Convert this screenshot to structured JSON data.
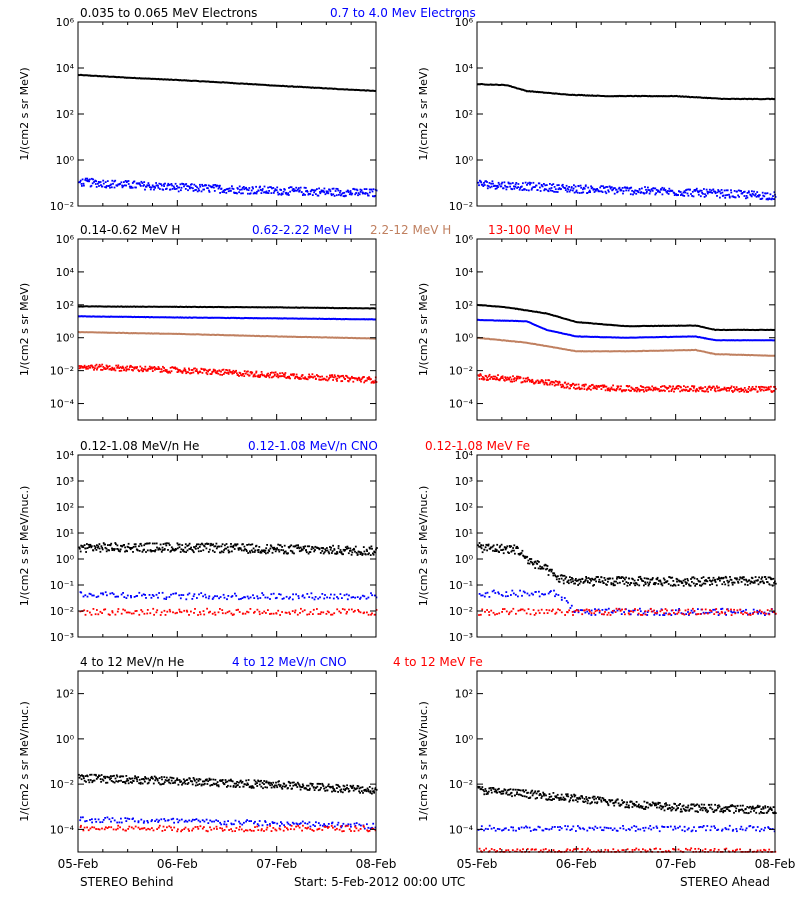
{
  "footer": {
    "left": "STEREO Behind",
    "center": "Start:  5-Feb-2012 00:00 UTC",
    "right": "STEREO Ahead"
  },
  "x_ticks": [
    "05-Feb",
    "06-Feb",
    "07-Feb",
    "08-Feb"
  ],
  "colors": {
    "black": "#000000",
    "blue": "#0000ff",
    "tan": "#c08060",
    "red": "#ff0000"
  },
  "chart_data": [
    {
      "type": "scatter",
      "panel": "row1-left",
      "ylabel": "1/(cm2 s sr MeV)",
      "ylim": [
        0.01,
        1000000
      ],
      "log_y": true,
      "yticks": [
        [
          0.01,
          "10⁻²"
        ],
        [
          1,
          "10⁰"
        ],
        [
          100,
          "10²"
        ],
        [
          10000,
          "10⁴"
        ],
        [
          1000000,
          "10⁶"
        ]
      ],
      "series": [
        {
          "name": "0.035 to 0.065 MeV Electrons",
          "color": "#000000",
          "style": "line",
          "x": [
            0,
            0.5,
            1,
            1.5,
            2,
            2.5,
            3
          ],
          "values": [
            5000,
            3800,
            3000,
            2300,
            1700,
            1300,
            1000
          ]
        },
        {
          "name": "0.7 to 4.0 Mev Electrons",
          "color": "#0000ff",
          "style": "noisy",
          "x": [
            0,
            1,
            2,
            3
          ],
          "values": [
            0.12,
            0.07,
            0.05,
            0.04
          ]
        }
      ]
    },
    {
      "type": "scatter",
      "panel": "row1-right",
      "ylabel": "1/(cm2 s sr MeV)",
      "ylim": [
        0.01,
        1000000
      ],
      "log_y": true,
      "yticks": [
        [
          0.01,
          "10⁻²"
        ],
        [
          1,
          "10⁰"
        ],
        [
          100,
          "10²"
        ],
        [
          10000,
          "10⁴"
        ],
        [
          1000000,
          "10⁶"
        ]
      ],
      "series": [
        {
          "name": "",
          "color": "#000000",
          "style": "line",
          "x": [
            0,
            0.3,
            0.5,
            0.9,
            1.3,
            2,
            2.5,
            3
          ],
          "values": [
            2000,
            1800,
            1000,
            700,
            600,
            600,
            450,
            450
          ]
        },
        {
          "name": "",
          "color": "#0000ff",
          "style": "noisy",
          "x": [
            0,
            1,
            2,
            3
          ],
          "values": [
            0.1,
            0.06,
            0.045,
            0.03
          ]
        }
      ]
    },
    {
      "type": "scatter",
      "panel": "row2-left",
      "ylabel": "1/(cm2 s sr MeV)",
      "ylim": [
        1e-05,
        1000000
      ],
      "log_y": true,
      "yticks": [
        [
          0.0001,
          "10⁻⁴"
        ],
        [
          0.01,
          "10⁻²"
        ],
        [
          1,
          "10⁰"
        ],
        [
          100,
          "10²"
        ],
        [
          10000,
          "10⁴"
        ],
        [
          1000000,
          "10⁶"
        ]
      ],
      "series": [
        {
          "name": "0.14-0.62 MeV H",
          "color": "#000000",
          "style": "line",
          "x": [
            0,
            1,
            2,
            3
          ],
          "values": [
            80,
            75,
            70,
            60
          ]
        },
        {
          "name": "0.62-2.22 MeV H",
          "color": "#0000ff",
          "style": "line",
          "x": [
            0,
            1,
            2,
            3
          ],
          "values": [
            20,
            17,
            15,
            13
          ]
        },
        {
          "name": "2.2-12 MeV H",
          "color": "#c08060",
          "style": "line",
          "x": [
            0,
            1,
            2,
            3
          ],
          "values": [
            2.2,
            1.7,
            1.2,
            0.9
          ]
        },
        {
          "name": "13-100 MeV H",
          "color": "#ff0000",
          "style": "noisy",
          "x": [
            0,
            1,
            2,
            3
          ],
          "values": [
            0.02,
            0.012,
            0.006,
            0.003
          ]
        }
      ]
    },
    {
      "type": "scatter",
      "panel": "row2-right",
      "ylabel": "1/(cm2 s sr MeV)",
      "ylim": [
        1e-05,
        1000000
      ],
      "log_y": true,
      "yticks": [
        [
          0.0001,
          "10⁻⁴"
        ],
        [
          0.01,
          "10⁻²"
        ],
        [
          1,
          "10⁰"
        ],
        [
          100,
          "10²"
        ],
        [
          10000,
          "10⁴"
        ],
        [
          1000000,
          "10⁶"
        ]
      ],
      "series": [
        {
          "name": "",
          "color": "#000000",
          "style": "line",
          "x": [
            0,
            0.3,
            0.7,
            1,
            1.5,
            2.2,
            2.4,
            3
          ],
          "values": [
            100,
            70,
            30,
            9,
            5,
            5.5,
            3,
            3
          ]
        },
        {
          "name": "",
          "color": "#0000ff",
          "style": "line",
          "x": [
            0,
            0.5,
            0.7,
            1,
            1.5,
            2.2,
            2.4,
            3
          ],
          "values": [
            12,
            10,
            3,
            1.2,
            1.0,
            1.2,
            0.7,
            0.7
          ]
        },
        {
          "name": "",
          "color": "#c08060",
          "style": "line",
          "x": [
            0,
            0.5,
            1,
            1.5,
            2.2,
            2.4,
            3
          ],
          "values": [
            1.0,
            0.5,
            0.15,
            0.15,
            0.18,
            0.1,
            0.08
          ]
        },
        {
          "name": "",
          "color": "#ff0000",
          "style": "noisy",
          "x": [
            0,
            0.5,
            1,
            1.5,
            2,
            3
          ],
          "values": [
            0.005,
            0.003,
            0.0012,
            0.0009,
            0.0009,
            0.0008
          ]
        }
      ]
    },
    {
      "type": "scatter",
      "panel": "row3-left",
      "ylabel": "1/(cm2 s sr MeV/nuc.)",
      "ylim": [
        0.001,
        10000
      ],
      "log_y": true,
      "yticks": [
        [
          0.001,
          "10⁻³"
        ],
        [
          0.01,
          "10⁻²"
        ],
        [
          0.1,
          "10⁻¹"
        ],
        [
          1,
          "10⁰"
        ],
        [
          10,
          "10¹"
        ],
        [
          100,
          "10²"
        ],
        [
          1000,
          "10³"
        ],
        [
          10000,
          "10⁴"
        ]
      ],
      "series": [
        {
          "name": "0.12-1.08 MeV/n He",
          "color": "#000000",
          "style": "noisy",
          "x": [
            0,
            1,
            2,
            3
          ],
          "values": [
            3,
            3,
            2.6,
            2.2
          ]
        },
        {
          "name": "0.12-1.08 MeV/n CNO",
          "color": "#0000ff",
          "style": "sparse",
          "x": [
            0,
            1,
            2,
            3
          ],
          "values": [
            0.05,
            0.04,
            0.04,
            0.04
          ]
        },
        {
          "name": "0.12-1.08 MeV Fe",
          "color": "#ff0000",
          "style": "sparse",
          "x": [
            0,
            1,
            2,
            3
          ],
          "values": [
            0.01,
            0.01,
            0.01,
            0.01
          ]
        }
      ]
    },
    {
      "type": "scatter",
      "panel": "row3-right",
      "ylabel": "1/(cm2 s sr MeV/nuc.)",
      "ylim": [
        0.001,
        10000
      ],
      "log_y": true,
      "yticks": [
        [
          0.001,
          "10⁻³"
        ],
        [
          0.01,
          "10⁻²"
        ],
        [
          0.1,
          "10⁻¹"
        ],
        [
          1,
          "10⁰"
        ],
        [
          10,
          "10¹"
        ],
        [
          100,
          "10²"
        ],
        [
          1000,
          "10³"
        ],
        [
          10000,
          "10⁴"
        ]
      ],
      "series": [
        {
          "name": "",
          "color": "#000000",
          "style": "noisy",
          "x": [
            0,
            0.4,
            0.5,
            0.7,
            0.8,
            1,
            3
          ],
          "values": [
            3,
            2.5,
            1.0,
            0.4,
            0.2,
            0.15,
            0.15
          ]
        },
        {
          "name": "",
          "color": "#0000ff",
          "style": "sparse",
          "x": [
            0,
            0.8,
            1,
            3
          ],
          "values": [
            0.05,
            0.05,
            0.01,
            0.01
          ]
        },
        {
          "name": "",
          "color": "#ff0000",
          "style": "sparse",
          "x": [
            0,
            0.8,
            1,
            3
          ],
          "values": [
            0.01,
            0.01,
            0.01,
            0.01
          ]
        }
      ]
    },
    {
      "type": "scatter",
      "panel": "row4-left",
      "ylabel": "1/(cm2 s sr MeV/nuc.)",
      "ylim": [
        1e-05,
        1000
      ],
      "log_y": true,
      "yticks": [
        [
          0.0001,
          "10⁻⁴"
        ],
        [
          0.01,
          "10⁻²"
        ],
        [
          1,
          "10⁰"
        ],
        [
          100,
          "10²"
        ]
      ],
      "series": [
        {
          "name": "4 to 12 MeV/n He",
          "color": "#000000",
          "style": "noisy",
          "x": [
            0,
            1,
            2,
            3
          ],
          "values": [
            0.02,
            0.015,
            0.01,
            0.006
          ]
        },
        {
          "name": "4 to 12 MeV/n CNO",
          "color": "#0000ff",
          "style": "sparse",
          "x": [
            0,
            1,
            2,
            3
          ],
          "values": [
            0.0003,
            0.00025,
            0.0002,
            0.00015
          ]
        },
        {
          "name": "4 to 12 MeV Fe",
          "color": "#ff0000",
          "style": "sparse",
          "x": [
            0,
            1,
            2,
            3
          ],
          "values": [
            0.00012,
            0.00012,
            0.00012,
            0.00012
          ]
        }
      ]
    },
    {
      "type": "scatter",
      "panel": "row4-right",
      "ylabel": "1/(cm2 s sr MeV/nuc.)",
      "ylim": [
        1e-05,
        1000
      ],
      "log_y": true,
      "yticks": [
        [
          0.0001,
          "10⁻⁴"
        ],
        [
          0.01,
          "10⁻²"
        ],
        [
          1,
          "10⁰"
        ],
        [
          100,
          "10²"
        ]
      ],
      "series": [
        {
          "name": "",
          "color": "#000000",
          "style": "noisy",
          "x": [
            0,
            0.5,
            1,
            1.5,
            2,
            3
          ],
          "values": [
            0.006,
            0.004,
            0.0025,
            0.0015,
            0.001,
            0.0008
          ]
        },
        {
          "name": "",
          "color": "#0000ff",
          "style": "sparse",
          "x": [
            0,
            1,
            3
          ],
          "values": [
            0.00012,
            0.00012,
            0.00012
          ]
        },
        {
          "name": "",
          "color": "#ff0000",
          "style": "sparse",
          "x": [
            0,
            3
          ],
          "values": [
            1.2e-05,
            1.2e-05
          ]
        }
      ]
    }
  ]
}
